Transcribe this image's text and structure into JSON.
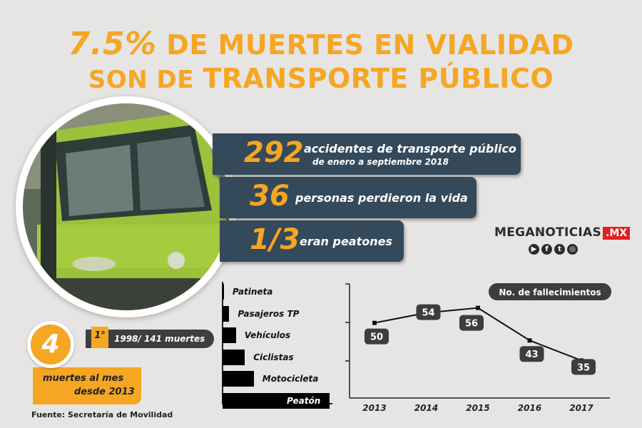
{
  "header": {
    "line1_big": "7.5%",
    "line1_rest": "DE MUERTES EN VIALIDAD",
    "line2_small": "SON DE",
    "line2_big": "TRANSPORTE PÚBLICO"
  },
  "stats": [
    {
      "number": "292",
      "text": "accidentes de transporte público",
      "subtext": "de enero a septiembre 2018"
    },
    {
      "number": "36",
      "text": "personas perdieron la vida"
    },
    {
      "number": "1/3",
      "text": "eran peatones"
    }
  ],
  "brand": {
    "name": "MEGANOTICIAS",
    "suffix": ".MX",
    "icons": [
      "youtube-icon",
      "facebook-icon",
      "twitter-icon",
      "instagram-icon"
    ]
  },
  "monthly": {
    "number": "4",
    "line1": "muertes al mes",
    "line2": "desde 2013"
  },
  "record": {
    "rank": "1°",
    "text": "1998/ 141 muertes"
  },
  "source": "Fuente: Secretaría de Movilidad",
  "colors": {
    "accent": "#f5a623",
    "panel": "#34495a",
    "background": "#e6e5e4"
  },
  "chart_data": [
    {
      "type": "bar",
      "orientation": "horizontal",
      "categories": [
        "Patineta",
        "Pasajeros TP",
        "Vehículos",
        "Ciclistas",
        "Motocicleta",
        "Peatón"
      ],
      "values": [
        0.3,
        1.5,
        3,
        5,
        7,
        24
      ],
      "xlabel": "",
      "ylabel": ""
    },
    {
      "type": "line",
      "legend": "No. de fallecimientos",
      "x": [
        "2013",
        "2014",
        "2015",
        "2016",
        "2017"
      ],
      "values": [
        50,
        54,
        56,
        43,
        35
      ],
      "ylim": [
        20,
        65
      ],
      "grid": false
    }
  ]
}
